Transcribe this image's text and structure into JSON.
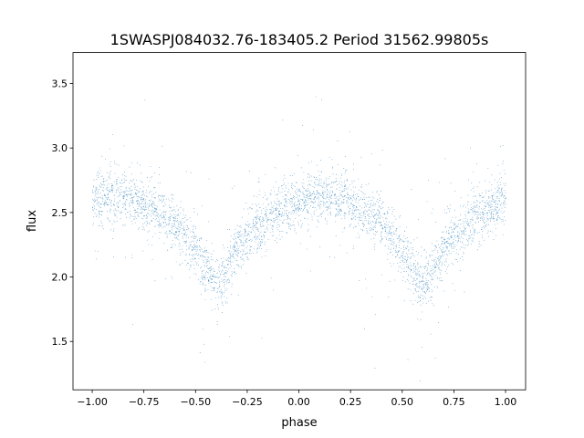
{
  "chart_data": {
    "type": "scatter",
    "title": "1SWASPJ084032.76-183405.2 Period 31562.99805s",
    "xlabel": "phase",
    "ylabel": "flux",
    "xlim": [
      -1.093,
      1.097
    ],
    "ylim": [
      1.125,
      3.74
    ],
    "xticks": [
      -1.0,
      -0.75,
      -0.5,
      -0.25,
      0.0,
      0.25,
      0.5,
      0.75,
      1.0
    ],
    "xtick_labels": [
      "−1.00",
      "−0.75",
      "−0.50",
      "−0.25",
      "0.00",
      "0.25",
      "0.50",
      "0.75",
      "1.00"
    ],
    "yticks": [
      1.5,
      2.0,
      2.5,
      3.0,
      3.5
    ],
    "ytick_labels": [
      "1.5",
      "2.0",
      "2.5",
      "3.0",
      "3.5"
    ],
    "grid": false,
    "point_color": "#1f77b4",
    "x_range_of_points": [
      -1.0,
      1.0
    ],
    "binned_mean_flux": {
      "phase": [
        -1.0,
        -0.9,
        -0.8,
        -0.7,
        -0.6,
        -0.5,
        -0.45,
        -0.4,
        -0.35,
        -0.3,
        -0.2,
        -0.1,
        0.0,
        0.1,
        0.2,
        0.3,
        0.4,
        0.5,
        0.55,
        0.6,
        0.65,
        0.7,
        0.8,
        0.9,
        1.0
      ],
      "flux": [
        2.6,
        2.63,
        2.6,
        2.53,
        2.42,
        2.22,
        2.05,
        1.95,
        2.05,
        2.22,
        2.4,
        2.5,
        2.6,
        2.63,
        2.6,
        2.53,
        2.42,
        2.22,
        2.05,
        1.95,
        2.05,
        2.22,
        2.4,
        2.5,
        2.6
      ]
    },
    "typical_scatter_flux": 0.1
  }
}
